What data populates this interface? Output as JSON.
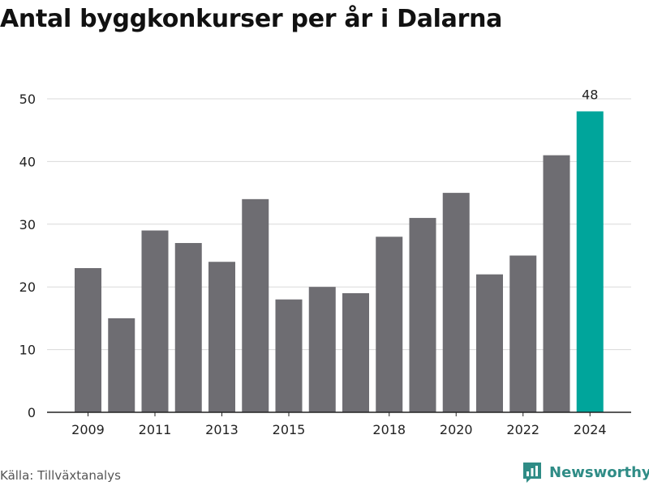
{
  "title": "Antal byggkonkurser per år i Dalarna",
  "source": "Källa: Tillväxtanalys",
  "brand": {
    "name": "Newsworthy",
    "icon": "newsworthy-logo-icon"
  },
  "colors": {
    "bar_default": "#6e6d72",
    "bar_highlight": "#00a59b",
    "gridline": "#d9d9d9",
    "axis": "#222222",
    "brand": "#2f8c86"
  },
  "chart_data": {
    "type": "bar",
    "title": "Antal byggkonkurser per år i Dalarna",
    "xlabel": "",
    "ylabel": "",
    "categories": [
      "2009",
      "2010",
      "2011",
      "2012",
      "2013",
      "2014",
      "2015",
      "2016",
      "2017",
      "2018",
      "2019",
      "2020",
      "2021",
      "2022",
      "2023",
      "2024"
    ],
    "values": [
      23,
      15,
      29,
      27,
      24,
      34,
      18,
      20,
      19,
      28,
      31,
      35,
      22,
      25,
      41,
      48
    ],
    "x_tick_labels": [
      "2009",
      "2011",
      "2013",
      "2015",
      "2018",
      "2020",
      "2022",
      "2024"
    ],
    "y_ticks": [
      0,
      10,
      20,
      30,
      40,
      50
    ],
    "ylim": [
      0,
      50
    ],
    "grid": true,
    "legend": "none",
    "highlight_category": "2024",
    "data_labels": [
      {
        "category": "2024",
        "text": "48"
      }
    ]
  }
}
